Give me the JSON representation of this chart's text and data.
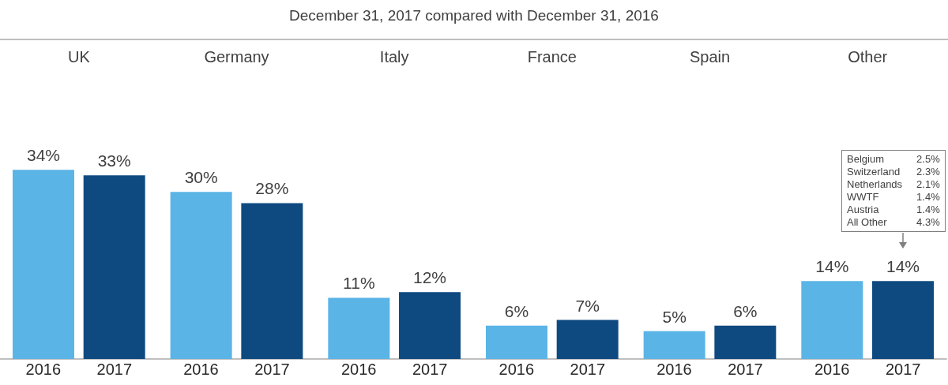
{
  "chart_data": {
    "type": "bar",
    "title": "December 31, 2017 compared with December 31, 2016",
    "categories": [
      "UK",
      "Germany",
      "Italy",
      "France",
      "Spain",
      "Other"
    ],
    "series": [
      {
        "name": "2016",
        "color": "#5ab4e6",
        "values": [
          34,
          30,
          11,
          6,
          5,
          14
        ],
        "value_labels": [
          "34%",
          "30%",
          "11%",
          "6%",
          "5%",
          "14%"
        ]
      },
      {
        "name": "2017",
        "color": "#0e4a80",
        "values": [
          33,
          28,
          12,
          7,
          6,
          14
        ],
        "value_labels": [
          "33%",
          "28%",
          "12%",
          "7%",
          "6%",
          "14%"
        ]
      }
    ],
    "legend": false,
    "annotations": [
      "Belgium",
      "2.5%",
      "Switzerland",
      "2.3%",
      "Netherlands",
      "2.1%",
      "WWTF",
      "1.4%",
      "Austria",
      "1.4%",
      "All Other",
      "4.3%"
    ]
  }
}
